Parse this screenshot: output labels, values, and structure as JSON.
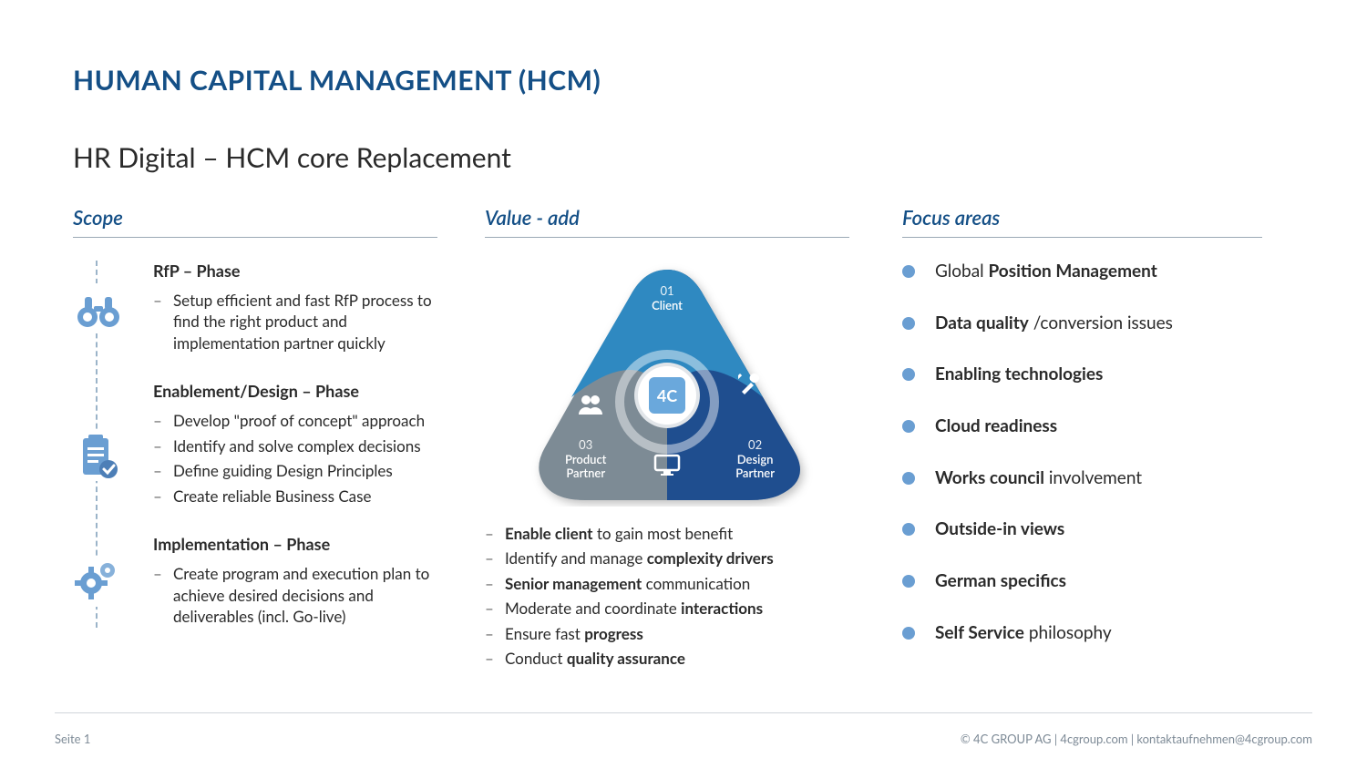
{
  "title": "HUMAN CAPITAL MANAGEMENT (HCM)",
  "subtitle": "HR Digital – HCM core Replacement",
  "colors": {
    "brand": "#144f86",
    "accent": "#6a9ed2",
    "tri_top": "#2f89c1",
    "tri_right": "#1f4e8f",
    "tri_left": "#7d8b95",
    "text": "#2a2a2a",
    "muted": "#7d8a96",
    "divider": "#d0d5da"
  },
  "scope": {
    "heading": "Scope",
    "phases": [
      {
        "title": "RfP – Phase",
        "icon": "binoculars-icon",
        "bullets": [
          "Setup efficient and fast RfP process to find the right product and implementation partner quickly"
        ]
      },
      {
        "title": "Enablement/Design – Phase",
        "icon": "clipboard-check-icon",
        "bullets": [
          "Develop \"proof of concept\" approach",
          "Identify and solve complex decisions",
          "Define guiding Design Principles",
          "Create reliable Business Case"
        ]
      },
      {
        "title": "Implementation – Phase",
        "icon": "gears-icon",
        "bullets": [
          "Create program and execution plan to achieve desired decisions and deliverables (incl. Go-live)"
        ]
      }
    ]
  },
  "value": {
    "heading": "Value - add",
    "triangle": {
      "top": {
        "num": "01",
        "name": "Client"
      },
      "right": {
        "num": "02",
        "name": "Design Partner"
      },
      "left": {
        "num": "03",
        "name": "Product Partner"
      },
      "center_label": "4C"
    },
    "bullets_html": [
      "<b>Enable client</b> to gain most benefit",
      "Identify and manage <b>complexity drivers</b>",
      "<b>Senior management</b> communication",
      "Moderate and coordinate <b>interactions</b>",
      "Ensure fast <b>progress</b>",
      "Conduct <b>quality assurance</b>"
    ]
  },
  "focus": {
    "heading": "Focus areas",
    "items_html": [
      "Global <b>Position Management</b>",
      "<b>Data quality</b> /conversion issues",
      "<b>Enabling technologies</b>",
      "<b>Cloud readiness</b>",
      "<b>Works council</b> involvement",
      "<b>Outside-in views</b>",
      "<b>German specifics</b>",
      "<b>Self Service</b> philosophy"
    ]
  },
  "footer": {
    "left": "Seite 1",
    "right": "© 4C GROUP AG  |  4cgroup.com  |  kontaktaufnehmen@4cgroup.com"
  }
}
